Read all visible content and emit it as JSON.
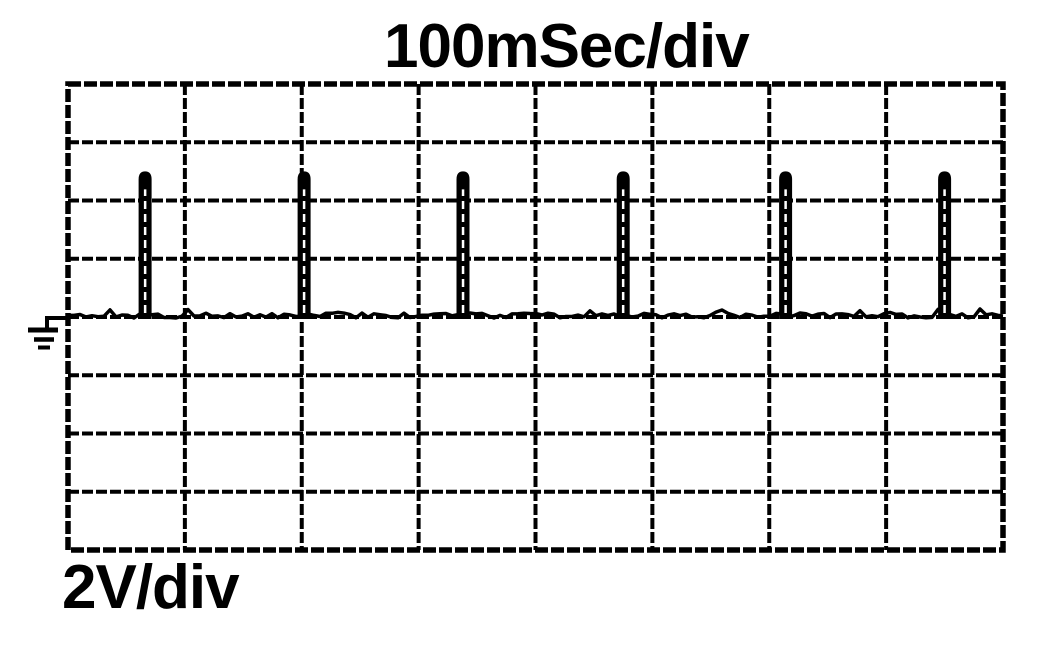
{
  "figure": {
    "title": "100mSec/div",
    "vertical_scale_label": "2V/div"
  },
  "colors": {
    "ink": "#000000",
    "background": "#ffffff"
  },
  "icons": {
    "ground_marker": "ground-reference-symbol"
  },
  "chart_data": {
    "type": "line",
    "title": "100mSec/div",
    "xlabel": "Time, 100 mSec per division",
    "ylabel": "Voltage, 2 V per division",
    "grid": true,
    "legend": false,
    "x_axis": {
      "time_per_div_ms": 100,
      "divisions": 8,
      "total_ms": 800
    },
    "y_axis": {
      "volts_per_div": 2,
      "divisions": 8,
      "total_v": 16,
      "baseline_div_from_top": 4
    },
    "series": [
      {
        "name": "scope-trace",
        "description": "Noisy 0 V baseline with periodic narrow positive pulses",
        "baseline_v": 0,
        "noise_peak_v": 0.2,
        "pulse_amplitude_v": 5,
        "pulse_width_ms": 11,
        "pulse_period_ms": 137,
        "pulse_times_ms": [
          66,
          202,
          338,
          475,
          614,
          750
        ]
      }
    ]
  }
}
